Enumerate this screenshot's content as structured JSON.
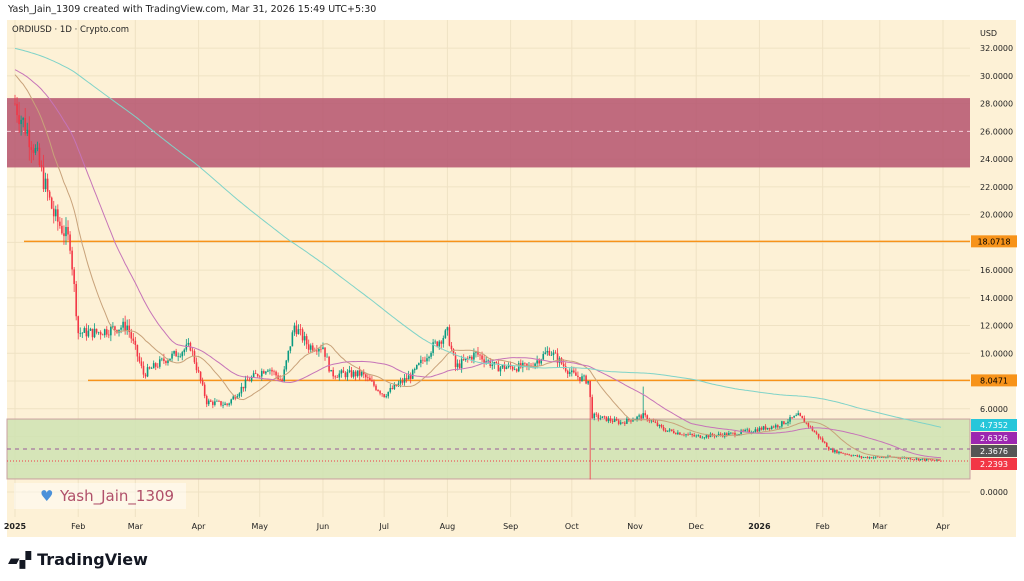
{
  "header": {
    "attribution": "Yash_Jain_1309 created with TradingView.com, Mar 31, 2026 15:49 UTC+5:30",
    "symbol": "ORDIUSD · 1D · Crypto.com"
  },
  "watermark": {
    "icon": "heart-icon",
    "text": "Yash_Jain_1309"
  },
  "footer": {
    "logo": "TradingView"
  },
  "colors": {
    "background": "#fdf1d6",
    "up": "#089981",
    "down": "#f23645",
    "resistance_zone": "#b5536f",
    "support_zone": "#cfe3b3",
    "level_line": "#f7931a",
    "ma_short": "#c8a27a",
    "ma_mid": "#c674b8",
    "ma_long": "#7fd3c8"
  },
  "chart_data": {
    "type": "candlestick",
    "symbol": "ORDIUSD",
    "interval": "1D",
    "exchange": "Crypto.com",
    "currency_label": "USD",
    "ylim": [
      -1.5,
      33.5
    ],
    "y_ticks": [
      "32.0000",
      "30.0000",
      "28.0000",
      "26.0000",
      "24.0000",
      "22.0000",
      "20.0000",
      "16.0000",
      "14.0000",
      "12.0000",
      "10.0000",
      "6.0000",
      "0.0000"
    ],
    "y_tick_values": [
      32,
      30,
      28,
      26,
      24,
      22,
      20,
      16,
      14,
      12,
      10,
      6,
      0
    ],
    "x_ticks": [
      {
        "label": "2025",
        "date": "2025-01-01"
      },
      {
        "label": "Feb",
        "date": "2025-02-01"
      },
      {
        "label": "Mar",
        "date": "2025-03-01"
      },
      {
        "label": "Apr",
        "date": "2025-04-01"
      },
      {
        "label": "May",
        "date": "2025-05-01"
      },
      {
        "label": "Jun",
        "date": "2025-06-01"
      },
      {
        "label": "Jul",
        "date": "2025-07-01"
      },
      {
        "label": "Aug",
        "date": "2025-08-01"
      },
      {
        "label": "Sep",
        "date": "2025-09-01"
      },
      {
        "label": "Oct",
        "date": "2025-10-01"
      },
      {
        "label": "Nov",
        "date": "2025-11-01"
      },
      {
        "label": "Dec",
        "date": "2025-12-01"
      },
      {
        "label": "2026",
        "date": "2026-01-01"
      },
      {
        "label": "Feb",
        "date": "2026-02-01"
      },
      {
        "label": "Mar",
        "date": "2026-03-01"
      },
      {
        "label": "Apr",
        "date": "2026-04-01"
      }
    ],
    "close_path": [
      [
        "2025-01-01",
        28
      ],
      [
        "2025-01-10",
        25
      ],
      [
        "2025-01-20",
        20
      ],
      [
        "2025-01-28",
        18
      ],
      [
        "2025-02-01",
        11.5
      ],
      [
        "2025-02-10",
        11.5
      ],
      [
        "2025-02-25",
        12
      ],
      [
        "2025-03-05",
        8.5
      ],
      [
        "2025-03-15",
        9.5
      ],
      [
        "2025-03-28",
        10.5
      ],
      [
        "2025-04-05",
        6.5
      ],
      [
        "2025-04-15",
        6.3
      ],
      [
        "2025-04-25",
        8
      ],
      [
        "2025-05-05",
        9
      ],
      [
        "2025-05-12",
        8
      ],
      [
        "2025-05-18",
        12
      ],
      [
        "2025-05-25",
        10.5
      ],
      [
        "2025-06-01",
        10.5
      ],
      [
        "2025-06-05",
        8.5
      ],
      [
        "2025-06-20",
        8.5
      ],
      [
        "2025-07-01",
        7
      ],
      [
        "2025-07-15",
        8.5
      ],
      [
        "2025-07-25",
        10.5
      ],
      [
        "2025-08-01",
        11.5
      ],
      [
        "2025-08-05",
        9
      ],
      [
        "2025-08-15",
        10
      ],
      [
        "2025-08-25",
        9
      ],
      [
        "2025-09-10",
        9
      ],
      [
        "2025-09-20",
        10.2
      ],
      [
        "2025-10-01",
        8.5
      ],
      [
        "2025-10-09",
        8
      ],
      [
        "2025-10-11",
        5.5
      ],
      [
        "2025-10-25",
        5
      ],
      [
        "2025-11-05",
        5.5
      ],
      [
        "2025-11-15",
        4.5
      ],
      [
        "2025-12-01",
        4
      ],
      [
        "2025-12-20",
        4.2
      ],
      [
        "2026-01-10",
        4.8
      ],
      [
        "2026-01-20",
        5.5
      ],
      [
        "2026-01-25",
        4.8
      ],
      [
        "2026-02-05",
        3
      ],
      [
        "2026-02-20",
        2.5
      ],
      [
        "2026-03-10",
        2.5
      ],
      [
        "2026-03-31",
        2.24
      ]
    ],
    "notable_wicks": [
      {
        "date": "2025-10-10",
        "low": 0.9
      },
      {
        "date": "2025-11-05",
        "high": 7.6
      }
    ],
    "zones": [
      {
        "name": "resistance",
        "top": 28.4,
        "bottom": 23.4,
        "mid": 26.0
      },
      {
        "name": "support",
        "top": 5.26,
        "bottom": 0.94,
        "mid": 3.1
      }
    ],
    "levels": [
      {
        "value": 18.0718,
        "label": "18.0718"
      },
      {
        "value": 8.0471,
        "label": "8.0471"
      }
    ],
    "price_badges": [
      {
        "label": "4.7352",
        "value": 4.7352,
        "color": "#26c6da"
      },
      {
        "label": "2.6326",
        "value": 2.6326,
        "color": "#9c27b0"
      },
      {
        "label": "2.3676",
        "value": 2.3676,
        "color": "#555555"
      },
      {
        "label": "2.2393",
        "value": 2.2393,
        "color": "#f23645"
      }
    ]
  }
}
